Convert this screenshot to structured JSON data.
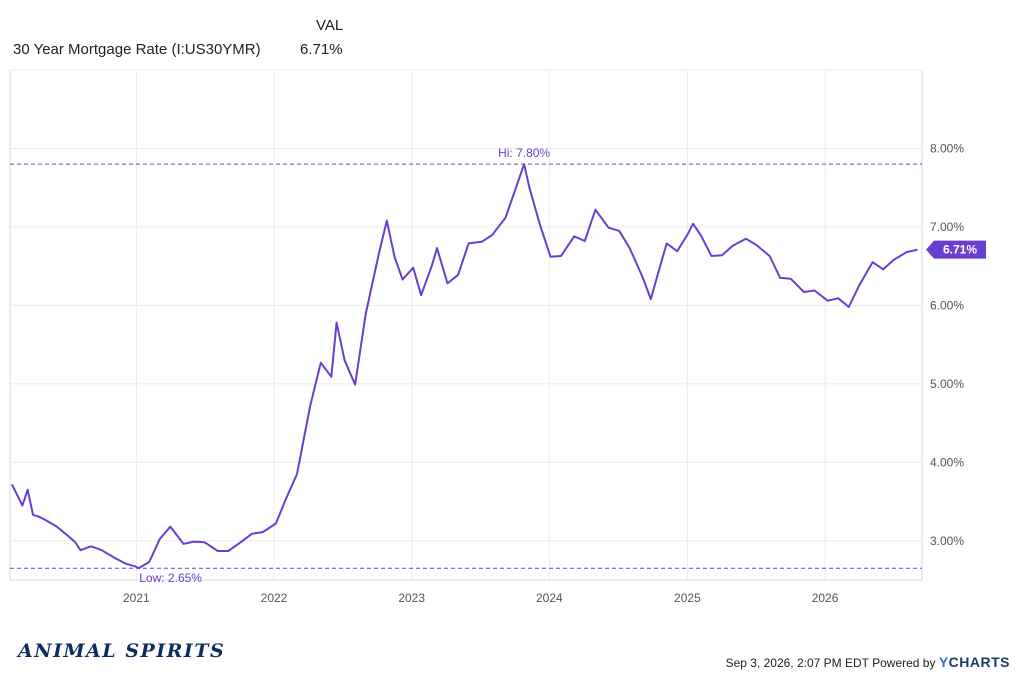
{
  "header": {
    "column_label": "VAL",
    "series_name": "30 Year Mortgage Rate (I:US30YMR)",
    "series_value": "6.71%"
  },
  "chart_data": {
    "type": "line",
    "title": "",
    "xlabel": "",
    "ylabel": "",
    "x_ticks": [
      "2021",
      "2022",
      "2023",
      "2024",
      "2025",
      "2026"
    ],
    "y_ticks": [
      "3.00%",
      "4.00%",
      "5.00%",
      "6.00%",
      "7.00%",
      "8.00%"
    ],
    "xlim": [
      "2020-02",
      "2026-09"
    ],
    "ylim": [
      2.5,
      9.0
    ],
    "grid": true,
    "line_color": "#6a3fd0",
    "annotations": {
      "high": {
        "label": "Hi: 7.80%",
        "x": "2023-10-26",
        "y": 7.8
      },
      "low": {
        "label": "Low: 2.65%",
        "x": "2021-01-07",
        "y": 2.65
      },
      "last": {
        "label": "6.71%",
        "x": "2026-09-03",
        "y": 6.71
      }
    },
    "series": [
      {
        "name": "30 Year Mortgage Rate (I:US30YMR)",
        "x": [
          "2020-02-06",
          "2020-03-05",
          "2020-03-19",
          "2020-04-02",
          "2020-04-16",
          "2020-05-07",
          "2020-06-04",
          "2020-07-02",
          "2020-07-23",
          "2020-08-06",
          "2020-09-03",
          "2020-10-01",
          "2020-11-05",
          "2020-12-03",
          "2020-12-31",
          "2021-01-07",
          "2021-02-04",
          "2021-03-04",
          "2021-04-01",
          "2021-05-06",
          "2021-06-03",
          "2021-07-01",
          "2021-08-05",
          "2021-09-02",
          "2021-10-07",
          "2021-11-04",
          "2021-12-02",
          "2022-01-06",
          "2022-02-03",
          "2022-03-03",
          "2022-04-07",
          "2022-05-05",
          "2022-06-02",
          "2022-06-16",
          "2022-07-07",
          "2022-08-04",
          "2022-09-01",
          "2022-10-06",
          "2022-10-27",
          "2022-11-17",
          "2022-12-08",
          "2023-01-05",
          "2023-01-26",
          "2023-02-23",
          "2023-03-09",
          "2023-04-06",
          "2023-05-04",
          "2023-06-01",
          "2023-07-06",
          "2023-08-03",
          "2023-09-07",
          "2023-10-26",
          "2023-11-09",
          "2023-12-07",
          "2024-01-04",
          "2024-02-01",
          "2024-03-07",
          "2024-04-04",
          "2024-05-02",
          "2024-06-06",
          "2024-07-04",
          "2024-08-01",
          "2024-09-05",
          "2024-09-26",
          "2024-10-10",
          "2024-11-07",
          "2024-12-05",
          "2025-01-02",
          "2025-01-16",
          "2025-02-06",
          "2025-03-06",
          "2025-04-03",
          "2025-05-01",
          "2025-06-05",
          "2025-07-03",
          "2025-08-07",
          "2025-09-04",
          "2025-10-02",
          "2025-11-06",
          "2025-12-04",
          "2026-01-08",
          "2026-02-05",
          "2026-03-05",
          "2026-04-02",
          "2026-05-07",
          "2026-06-04",
          "2026-07-02",
          "2026-08-06",
          "2026-09-03"
        ],
        "values": [
          3.72,
          3.45,
          3.65,
          3.33,
          3.31,
          3.26,
          3.18,
          3.07,
          2.98,
          2.88,
          2.93,
          2.88,
          2.78,
          2.71,
          2.67,
          2.65,
          2.73,
          3.02,
          3.18,
          2.96,
          2.99,
          2.98,
          2.87,
          2.87,
          2.99,
          3.09,
          3.11,
          3.22,
          3.55,
          3.85,
          4.72,
          5.27,
          5.09,
          5.78,
          5.3,
          4.99,
          5.89,
          6.66,
          7.08,
          6.61,
          6.33,
          6.48,
          6.13,
          6.5,
          6.73,
          6.28,
          6.39,
          6.79,
          6.81,
          6.9,
          7.12,
          7.8,
          7.5,
          7.03,
          6.62,
          6.63,
          6.88,
          6.82,
          7.22,
          6.99,
          6.95,
          6.73,
          6.35,
          6.08,
          6.32,
          6.79,
          6.69,
          6.91,
          7.04,
          6.89,
          6.63,
          6.64,
          6.76,
          6.85,
          6.77,
          6.63,
          6.35,
          6.34,
          6.17,
          6.19,
          6.06,
          6.09,
          5.98,
          6.26,
          6.55,
          6.46,
          6.58,
          6.68,
          6.71
        ]
      }
    ]
  },
  "footer": {
    "brand": "ANIMAL SPIRITS",
    "timestamp": "Sep 3, 2026, 2:07 PM EDT Powered by",
    "provider_y": "Y",
    "provider_rest": "CHARTS"
  }
}
